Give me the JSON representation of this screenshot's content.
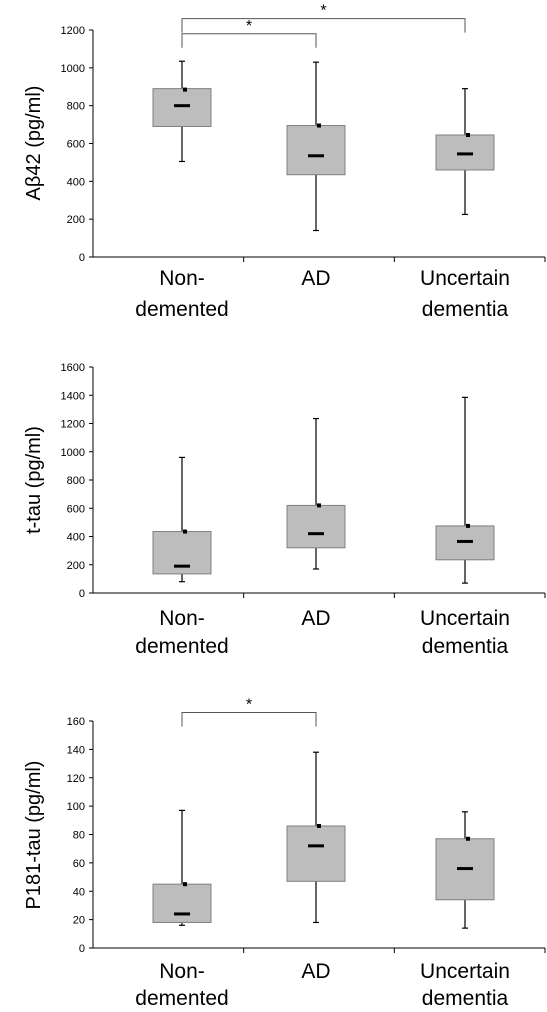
{
  "chart_data": [
    {
      "type": "box",
      "ylabel": "Aβ42 (pg/ml)",
      "ylim": [
        0,
        1200
      ],
      "yticks": [
        0,
        200,
        400,
        600,
        800,
        1000,
        1200
      ],
      "categories": [
        {
          "line1": "Non-",
          "line2": "demented"
        },
        {
          "line1": "AD",
          "line2": ""
        },
        {
          "line1": "Uncertain",
          "line2": "dementia"
        }
      ],
      "boxes": [
        {
          "whisker_low": 505,
          "q1": 690,
          "median": 800,
          "q3": 890,
          "whisker_high": 1035,
          "mean": 885
        },
        {
          "whisker_low": 140,
          "q1": 435,
          "median": 535,
          "q3": 695,
          "whisker_high": 1030,
          "mean": 695
        },
        {
          "whisker_low": 225,
          "q1": 460,
          "median": 545,
          "q3": 645,
          "whisker_high": 890,
          "mean": 645
        }
      ],
      "significance": [
        {
          "from": 0,
          "to": 1,
          "value": 1180,
          "label": "*"
        },
        {
          "from": 0,
          "to": 2,
          "value": 1260,
          "label": "*"
        }
      ]
    },
    {
      "type": "box",
      "ylabel": "t-tau (pg/ml)",
      "ylim": [
        0,
        1600
      ],
      "yticks": [
        0,
        200,
        400,
        600,
        800,
        1000,
        1200,
        1400,
        1600
      ],
      "categories": [
        {
          "line1": "Non-",
          "line2": "demented"
        },
        {
          "line1": "AD",
          "line2": ""
        },
        {
          "line1": "Uncertain",
          "line2": "dementia"
        }
      ],
      "boxes": [
        {
          "whisker_low": 80,
          "q1": 135,
          "median": 190,
          "q3": 435,
          "whisker_high": 960,
          "mean": 435
        },
        {
          "whisker_low": 170,
          "q1": 320,
          "median": 420,
          "q3": 620,
          "whisker_high": 1235,
          "mean": 620
        },
        {
          "whisker_low": 70,
          "q1": 235,
          "median": 365,
          "q3": 475,
          "whisker_high": 1385,
          "mean": 475
        }
      ],
      "significance": []
    },
    {
      "type": "box",
      "ylabel": "P181-tau (pg/ml)",
      "ylim": [
        0,
        160
      ],
      "yticks": [
        0,
        20,
        40,
        60,
        80,
        100,
        120,
        140,
        160
      ],
      "categories": [
        {
          "line1": "Non-",
          "line2": "demented"
        },
        {
          "line1": "AD",
          "line2": ""
        },
        {
          "line1": "Uncertain",
          "line2": "dementia"
        }
      ],
      "boxes": [
        {
          "whisker_low": 16,
          "q1": 18,
          "median": 24,
          "q3": 45,
          "whisker_high": 97,
          "mean": 45
        },
        {
          "whisker_low": 18,
          "q1": 47,
          "median": 72,
          "q3": 86,
          "whisker_high": 138,
          "mean": 86
        },
        {
          "whisker_low": 14,
          "q1": 34,
          "median": 56,
          "q3": 77,
          "whisker_high": 96,
          "mean": 77
        }
      ],
      "significance": [
        {
          "from": 0,
          "to": 1,
          "value": 166,
          "label": "*"
        }
      ]
    }
  ],
  "colors": {
    "box_fill": "#bdbdbd",
    "box_stroke": "#7f7f7f",
    "line": "#000000"
  }
}
